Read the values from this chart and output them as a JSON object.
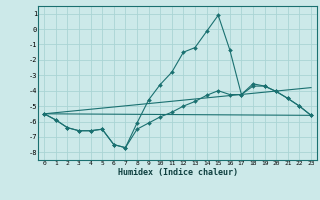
{
  "xlabel": "Humidex (Indice chaleur)",
  "background_color": "#cce9e9",
  "grid_color": "#aad4d4",
  "line_color": "#1a7070",
  "xlim": [
    -0.5,
    23.5
  ],
  "ylim": [
    -8.5,
    1.5
  ],
  "yticks": [
    1,
    0,
    -1,
    -2,
    -3,
    -4,
    -5,
    -6,
    -7,
    -8
  ],
  "xticks": [
    0,
    1,
    2,
    3,
    4,
    5,
    6,
    7,
    8,
    9,
    10,
    11,
    12,
    13,
    14,
    15,
    16,
    17,
    18,
    19,
    20,
    21,
    22,
    23
  ],
  "lines": [
    {
      "x": [
        0,
        1,
        2,
        3,
        4,
        5,
        6,
        7,
        8,
        9,
        10,
        11,
        12,
        13,
        14,
        15,
        16,
        17,
        18,
        19,
        20,
        21,
        22,
        23
      ],
      "y": [
        -5.5,
        -5.9,
        -6.4,
        -6.6,
        -6.6,
        -6.5,
        -7.5,
        -7.7,
        -6.1,
        -4.6,
        -3.6,
        -2.8,
        -1.5,
        -1.2,
        -0.15,
        0.9,
        -1.35,
        -4.25,
        -3.55,
        -3.7,
        -4.05,
        -4.5,
        -5.0,
        -5.6
      ],
      "has_markers": true
    },
    {
      "x": [
        0,
        1,
        2,
        3,
        4,
        5,
        6,
        7,
        8,
        9,
        10,
        11,
        12,
        13,
        14,
        15,
        16,
        17,
        18,
        19,
        20,
        21,
        22,
        23
      ],
      "y": [
        -5.5,
        -5.9,
        -6.4,
        -6.6,
        -6.6,
        -6.5,
        -7.5,
        -7.7,
        -6.5,
        -6.1,
        -5.7,
        -5.4,
        -5.0,
        -4.7,
        -4.3,
        -4.0,
        -4.25,
        -4.25,
        -3.7,
        -3.7,
        -4.05,
        -4.5,
        -5.0,
        -5.6
      ],
      "has_markers": true
    },
    {
      "x": [
        0,
        23
      ],
      "y": [
        -5.5,
        -3.8
      ],
      "has_markers": false
    },
    {
      "x": [
        0,
        23
      ],
      "y": [
        -5.5,
        -5.6
      ],
      "has_markers": false
    }
  ]
}
